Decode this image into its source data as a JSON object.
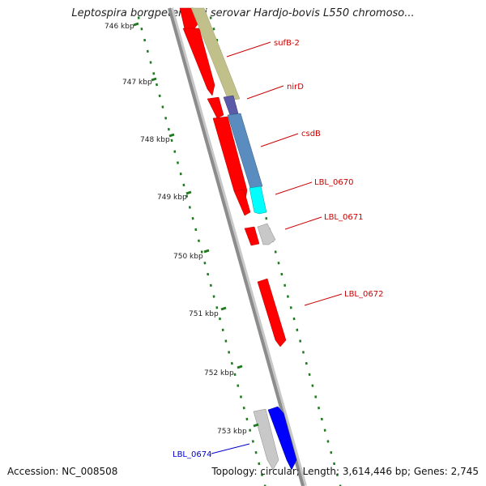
{
  "title": "Leptospira borgpetersenii serovar Hardjo-bovis L550 chromoso...",
  "footer": {
    "accession": "Accession: NC_008508",
    "topology": "Topology: circular; Length: 3,614,446 bp; Genes: 2,745"
  },
  "colors": {
    "backbone": "#8c8c8c",
    "tick": "#1e7a1e",
    "gene_red": "#ff0000",
    "gene_olive": "#c2c08a",
    "gene_blue": "#5a8cc0",
    "gene_cyan": "#00ffff",
    "gene_grey": "#c8c8c8",
    "gene_darkblue": "#0000ff",
    "label_red": "#cc0000",
    "label_blue": "#0000cc"
  },
  "kbp_ticks": [
    "746 kbp",
    "747 kbp",
    "748 kbp",
    "749 kbp",
    "750 kbp",
    "751 kbp",
    "752 kbp",
    "753 kbp"
  ],
  "gene_labels": [
    {
      "text": "sufB-2",
      "color": "red"
    },
    {
      "text": "nirD",
      "color": "red"
    },
    {
      "text": "csdB",
      "color": "red"
    },
    {
      "text": "LBL_0670",
      "color": "red"
    },
    {
      "text": "LBL_0671",
      "color": "red"
    },
    {
      "text": "LBL_0672",
      "color": "red"
    },
    {
      "text": "LBL_0674",
      "color": "blue"
    }
  ]
}
